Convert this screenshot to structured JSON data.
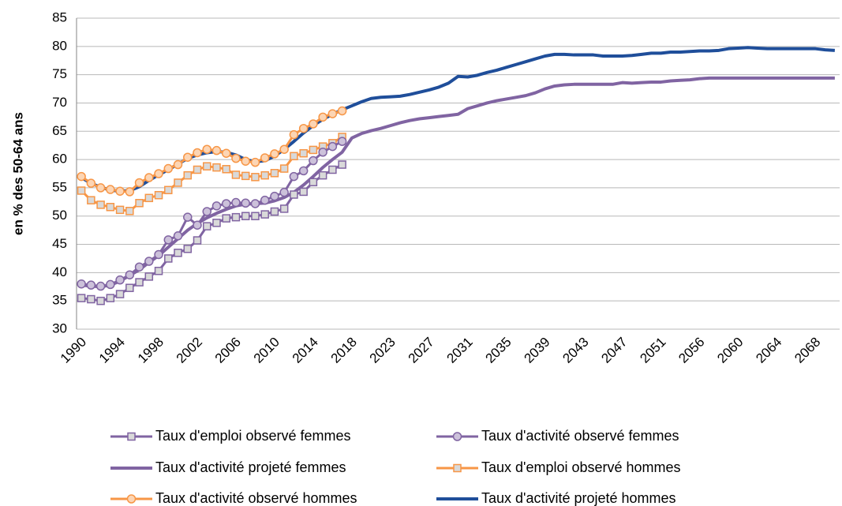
{
  "chart_data": {
    "type": "line",
    "ylabel": "en % des 50-64 ans",
    "categories": [
      "1990",
      null,
      null,
      null,
      "1994",
      null,
      null,
      null,
      "1998",
      null,
      null,
      null,
      "2002",
      null,
      null,
      null,
      "2006",
      null,
      null,
      null,
      "2010",
      null,
      null,
      null,
      "2014",
      null,
      null,
      null,
      "2018",
      null,
      null,
      null,
      "2023",
      null,
      null,
      null,
      "2027",
      null,
      null,
      null,
      "2031",
      null,
      null,
      null,
      "2035",
      null,
      null,
      null,
      "2039",
      null,
      null,
      null,
      "2043",
      null,
      null,
      null,
      "2047",
      null,
      null,
      null,
      "2051",
      null,
      null,
      null,
      "2056",
      null,
      null,
      null,
      "2060",
      null,
      null,
      null,
      "2064",
      null,
      null,
      null,
      "2068",
      null,
      null
    ],
    "ylim": [
      30,
      85
    ],
    "yticks": [
      30,
      35,
      40,
      45,
      50,
      55,
      60,
      65,
      70,
      75,
      80,
      85
    ],
    "grid": true,
    "series": [
      {
        "name": "Taux d'emploi observé femmes",
        "color": "#8064a2",
        "marker": "square",
        "values": [
          35.5,
          35.3,
          35,
          35.5,
          36.2,
          37.3,
          38.3,
          39.3,
          40.3,
          42.5,
          43.5,
          44.2,
          45.7,
          48.2,
          48.8,
          49.6,
          49.8,
          50,
          50,
          50.3,
          50.8,
          51.3,
          53.8,
          54.3,
          56,
          57.2,
          58.2,
          59.1,
          null,
          null,
          null,
          null,
          null,
          null,
          null,
          null,
          null,
          null,
          null,
          null,
          null,
          null,
          null,
          null,
          null,
          null,
          null,
          null,
          null,
          null,
          null,
          null,
          null,
          null,
          null,
          null,
          null,
          null,
          null,
          null,
          null,
          null,
          null,
          null,
          null,
          null,
          null,
          null,
          null,
          null,
          null,
          null,
          null,
          null,
          null,
          null,
          null,
          null,
          null
        ]
      },
      {
        "name": "Taux d'activité observé femmes",
        "color": "#8064a2",
        "marker": "circle",
        "values": [
          38,
          37.8,
          37.6,
          37.9,
          38.7,
          39.6,
          41,
          42,
          43.2,
          45.8,
          46.5,
          49.8,
          48.4,
          50.8,
          51.8,
          52.2,
          52.4,
          52.3,
          52.2,
          52.8,
          53.5,
          54.2,
          57,
          58,
          59.8,
          61.3,
          62.3,
          63.2,
          null,
          null,
          null,
          null,
          null,
          null,
          null,
          null,
          null,
          null,
          null,
          null,
          null,
          null,
          null,
          null,
          null,
          null,
          null,
          null,
          null,
          null,
          null,
          null,
          null,
          null,
          null,
          null,
          null,
          null,
          null,
          null,
          null,
          null,
          null,
          null,
          null,
          null,
          null,
          null,
          null,
          null,
          null,
          null,
          null,
          null,
          null,
          null,
          null,
          null,
          null
        ]
      },
      {
        "name": "Taux d'activité projeté femmes",
        "color": "#8064a2",
        "marker": "none",
        "values": [
          37.8,
          37.6,
          37.5,
          37.8,
          38.5,
          39.5,
          40.5,
          41.8,
          43,
          44.5,
          46,
          47.5,
          48.7,
          49.7,
          50.5,
          51.2,
          51.8,
          52.1,
          52.2,
          52.3,
          52.7,
          53.3,
          54.2,
          55.5,
          57,
          58.6,
          60,
          61.3,
          63.8,
          64.6,
          65.1,
          65.5,
          66,
          66.5,
          66.9,
          67.2,
          67.4,
          67.6,
          67.8,
          68,
          69,
          69.5,
          70,
          70.4,
          70.7,
          71,
          71.3,
          71.8,
          72.5,
          73,
          73.2,
          73.3,
          73.3,
          73.3,
          73.3,
          73.3,
          73.6,
          73.5,
          73.6,
          73.7,
          73.7,
          73.9,
          74,
          74.1,
          74.3,
          74.4,
          74.4,
          74.4,
          74.4,
          74.4,
          74.4,
          74.4,
          74.4,
          74.4,
          74.4,
          74.4,
          74.4,
          74.4,
          74.4
        ]
      },
      {
        "name": "Taux d'emploi observé hommes",
        "color": "#f79646",
        "marker": "square",
        "values": [
          54.5,
          52.8,
          52,
          51.6,
          51.1,
          50.9,
          52.3,
          53.2,
          53.7,
          54.6,
          55.9,
          57.2,
          58.2,
          58.8,
          58.6,
          58.3,
          57.3,
          57.1,
          56.9,
          57.2,
          57.6,
          58.4,
          60.6,
          61.1,
          61.7,
          62.3,
          62.9,
          64,
          null,
          null,
          null,
          null,
          null,
          null,
          null,
          null,
          null,
          null,
          null,
          null,
          null,
          null,
          null,
          null,
          null,
          null,
          null,
          null,
          null,
          null,
          null,
          null,
          null,
          null,
          null,
          null,
          null,
          null,
          null,
          null,
          null,
          null,
          null,
          null,
          null,
          null,
          null,
          null,
          null,
          null,
          null,
          null,
          null,
          null,
          null,
          null,
          null,
          null,
          null
        ]
      },
      {
        "name": "Taux d'activité observé hommes",
        "color": "#f79646",
        "marker": "circle",
        "values": [
          57,
          55.8,
          55,
          54.7,
          54.4,
          54.3,
          55.9,
          56.8,
          57.5,
          58.4,
          59.1,
          60.4,
          61.2,
          61.8,
          61.6,
          61.1,
          60.2,
          59.7,
          59.5,
          60.3,
          61,
          61.8,
          64.4,
          65.5,
          66.3,
          67.5,
          68.1,
          68.6,
          null,
          null,
          null,
          null,
          null,
          null,
          null,
          null,
          null,
          null,
          null,
          null,
          null,
          null,
          null,
          null,
          null,
          null,
          null,
          null,
          null,
          null,
          null,
          null,
          null,
          null,
          null,
          null,
          null,
          null,
          null,
          null,
          null,
          null,
          null,
          null,
          null,
          null,
          null,
          null,
          null,
          null,
          null,
          null,
          null,
          null,
          null,
          null,
          null,
          null,
          null
        ]
      },
      {
        "name": "Taux d'activité projeté hommes",
        "color": "#1f4e9a",
        "marker": "none",
        "values": [
          56.8,
          55.8,
          55.1,
          54.6,
          54.4,
          54.5,
          55.2,
          56.3,
          57.3,
          58.2,
          59.2,
          60.2,
          60.8,
          61.2,
          61.4,
          61.3,
          60.8,
          60,
          59.6,
          59.8,
          60.6,
          61.8,
          63.2,
          64.7,
          66,
          67.1,
          68,
          68.8,
          69.5,
          70.2,
          70.8,
          71,
          71.1,
          71.2,
          71.5,
          71.9,
          72.3,
          72.8,
          73.5,
          74.7,
          74.6,
          74.9,
          75.4,
          75.8,
          76.3,
          76.8,
          77.3,
          77.8,
          78.3,
          78.6,
          78.6,
          78.5,
          78.5,
          78.5,
          78.3,
          78.3,
          78.3,
          78.4,
          78.6,
          78.8,
          78.8,
          79,
          79,
          79.1,
          79.2,
          79.2,
          79.3,
          79.6,
          79.7,
          79.8,
          79.7,
          79.6,
          79.6,
          79.6,
          79.6,
          79.6,
          79.6,
          79.4,
          79.3
        ]
      }
    ]
  }
}
